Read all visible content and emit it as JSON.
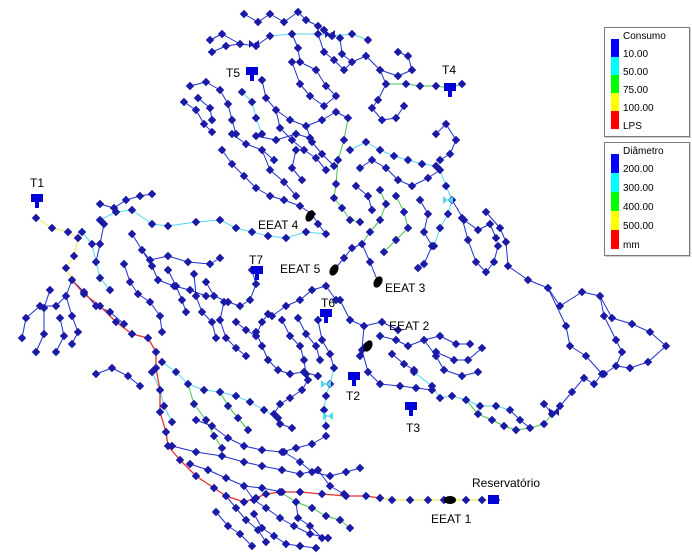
{
  "legend_consumo": {
    "title": "Consumo",
    "labels": [
      "10.00",
      "50.00",
      "75.00",
      "100.00",
      "LPS"
    ],
    "colors": [
      "#0000ff",
      "#00ffff",
      "#00ff00",
      "#ffff00",
      "#ff0000"
    ]
  },
  "legend_diametro": {
    "title": "Diâmetro",
    "labels": [
      "200.00",
      "300.00",
      "400.00",
      "500.00",
      "mm"
    ],
    "colors": [
      "#0000ff",
      "#00ffff",
      "#00ff00",
      "#ffff00",
      "#ff0000"
    ]
  },
  "labels": {
    "t1": "T1",
    "t2": "T2",
    "t3": "T3",
    "t4": "T4",
    "t5": "T5",
    "t6": "T6",
    "t7": "T7",
    "eeat1": "EEAT 1",
    "eeat2": "EEAT 2",
    "eeat3": "EEAT 3",
    "eeat4": "EEAT 4",
    "eeat5": "EEAT 5",
    "reservatorio": "Reservatório"
  },
  "colors": {
    "pipe_200": "#1f2ecf",
    "pipe_300": "#4fd9ee",
    "pipe_400": "#42c542",
    "pipe_500": "#f0e64a",
    "pipe_main": "#e6302b",
    "node": "#1a1aa6",
    "tank": "#0000d8",
    "pump": "#000000"
  }
}
